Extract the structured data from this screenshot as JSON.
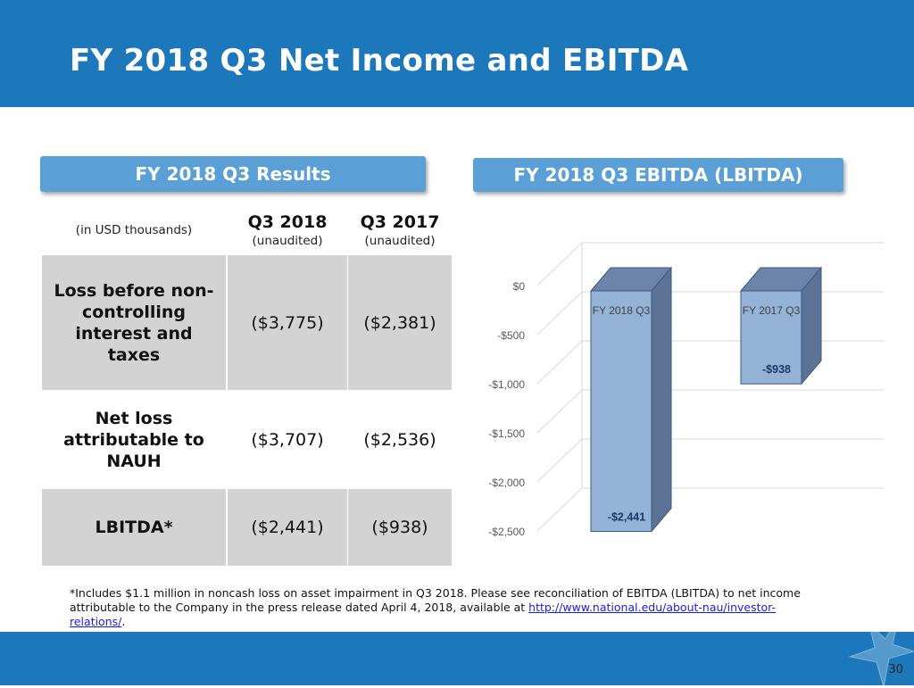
{
  "header": {
    "title": "FY 2018 Q3 Net Income and EBITDA"
  },
  "left_panel": {
    "title": "FY 2018 Q3 Results"
  },
  "right_panel": {
    "title": "FY 2018 Q3 EBITDA (LBITDA)"
  },
  "table": {
    "units_label": "(in USD thousands)",
    "columns": [
      {
        "label": "Q3 2018",
        "sub": "(unaudited)"
      },
      {
        "label": "Q3 2017",
        "sub": "(unaudited)"
      }
    ],
    "rows": [
      {
        "label": "Loss before non-controlling interest and taxes",
        "values": [
          "($3,775)",
          "($2,381)"
        ]
      },
      {
        "label": "Net loss attributable to NAUH",
        "values": [
          "($3,707)",
          "($2,536)"
        ]
      },
      {
        "label": "LBITDA*",
        "values": [
          "($2,441)",
          "($938)"
        ]
      }
    ]
  },
  "chart_data": {
    "type": "bar",
    "categories": [
      "FY 2018 Q3",
      "FY 2017 Q3"
    ],
    "values": [
      -2441,
      -938
    ],
    "data_labels": [
      "-$2,441",
      "-$938"
    ],
    "yticks": [
      "$0",
      "-$500",
      "-$1,000",
      "-$1,500",
      "-$2,000",
      "-$2,500"
    ],
    "ylim": [
      -2500,
      0
    ],
    "grid": true,
    "legend": "none",
    "bar_color": "#95b3d7"
  },
  "footnote": {
    "text": "*Includes $1.1 million in noncash loss on asset impairment in Q3 2018.  Please see reconciliation of EBITDA (LBITDA) to net income attributable to the Company in the press release dated April 4, 2018, available at ",
    "link": "http://www.national.edu/about-nau/investor-relations/",
    "end": "."
  },
  "page_number": "30",
  "colors": {
    "brand_blue": "#1d78bb",
    "pill_blue": "#5aa0d6",
    "table_gray": "#d3d3d3"
  }
}
